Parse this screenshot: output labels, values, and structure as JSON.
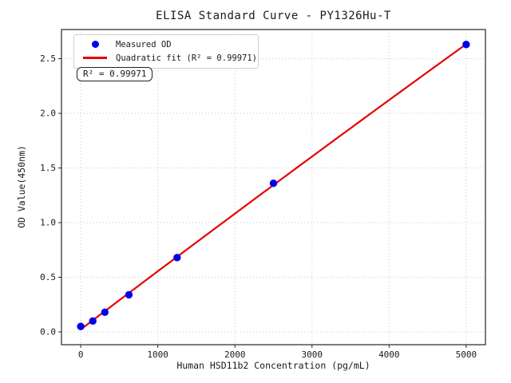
{
  "figure": {
    "background": "#ffffff"
  },
  "chart_data": {
    "type": "scatter",
    "title": "ELISA Standard Curve - PY1326Hu-T",
    "xlabel": "Human HSD11b2 Concentration (pg/mL)",
    "ylabel": "OD Value(450nm)",
    "series": [
      {
        "name": "Measured OD",
        "type": "scatter",
        "color": "#0000ee",
        "x": [
          0,
          156.25,
          312.5,
          625,
          1250,
          2500,
          5000
        ],
        "y": [
          0.05,
          0.1,
          0.18,
          0.34,
          0.68,
          1.36,
          2.63
        ]
      },
      {
        "name": "Quadratic fit (R² = 0.99971)",
        "type": "quadratic-fit",
        "color": "#e60000",
        "r_squared": 0.99971
      }
    ],
    "xlim": [
      -250,
      5250
    ],
    "ylim": [
      -0.117,
      2.767
    ],
    "x_ticks": {
      "values": [
        0,
        1000,
        2000,
        3000,
        4000,
        5000
      ],
      "labels": [
        "0",
        "1000",
        "2000",
        "3000",
        "4000",
        "5000"
      ]
    },
    "y_ticks": {
      "values": [
        0,
        0.5,
        1.0,
        1.5,
        2.0,
        2.5
      ],
      "labels": [
        "0.0",
        "0.5",
        "1.0",
        "1.5",
        "2.0",
        "2.5"
      ]
    },
    "grid": true,
    "legend_position": "upper-left",
    "annotation": "R² = 0.99971"
  },
  "legend": {
    "items": [
      {
        "label": "Measured OD",
        "marker": "dot",
        "color": "#0000ee"
      },
      {
        "label": "Quadratic fit (R² = 0.99971)",
        "marker": "line",
        "color": "#e60000"
      }
    ]
  },
  "annotation_box": {
    "text": "R² = 0.99971"
  },
  "colors": {
    "point": "#0000ee",
    "fit_line": "#e60000",
    "grid": "#c9c9c9",
    "spine": "#262626",
    "text": "#1a1a1a"
  }
}
